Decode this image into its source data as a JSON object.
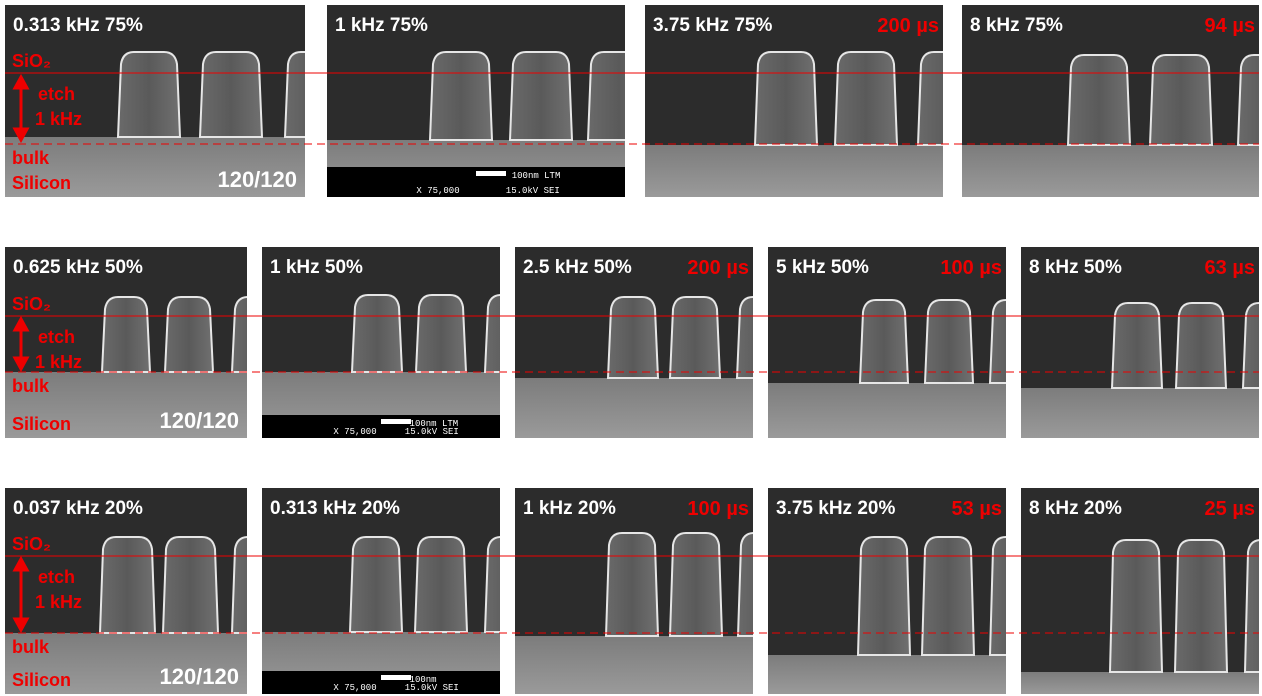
{
  "rows": [
    {
      "panels": [
        {
          "label": "0.313 kHz 75%",
          "annotations": {
            "oxide": "SiO₂",
            "etch": "etch",
            "etch_freq": "1 kHz",
            "bulk": "bulk",
            "silicon": "Silicon",
            "ratio": "120/120"
          }
        },
        {
          "label": "1 kHz 75%",
          "scale_bar": {
            "length": "100nm LTM",
            "magnification": "X 75,000",
            "voltage": "15.0kV SEI"
          }
        },
        {
          "label": "3.75 kHz 75%",
          "time": "200 µs"
        },
        {
          "label": "8 kHz 75%",
          "time": "94 µs"
        }
      ]
    },
    {
      "panels": [
        {
          "label": "0.625 kHz 50%",
          "annotations": {
            "oxide": "SiO₂",
            "etch": "etch",
            "etch_freq": "1 kHz",
            "bulk": "bulk",
            "silicon": "Silicon",
            "ratio": "120/120"
          }
        },
        {
          "label": "1 kHz 50%",
          "scale_bar": {
            "length": "100nm LTM",
            "magnification": "X 75,000",
            "voltage": "15.0kV SEI"
          }
        },
        {
          "label": "2.5 kHz 50%",
          "time": "200 µs"
        },
        {
          "label": "5 kHz 50%",
          "time": "100 µs"
        },
        {
          "label": "8 kHz 50%",
          "time": "63 µs"
        }
      ]
    },
    {
      "panels": [
        {
          "label": "0.037 kHz 20%",
          "annotations": {
            "oxide": "SiO₂",
            "etch": "etch",
            "etch_freq": "1 kHz",
            "bulk": "bulk",
            "silicon": "Silicon",
            "ratio": "120/120"
          }
        },
        {
          "label": "0.313 kHz 20%",
          "scale_bar": {
            "length": "100nm",
            "magnification": "X 75,000",
            "voltage": "15.0kV SEI"
          }
        },
        {
          "label": "1 kHz 20%",
          "time": "100 µs"
        },
        {
          "label": "3.75 kHz 20%",
          "time": "53 µs"
        },
        {
          "label": "8 kHz 20%",
          "time": "25 µs"
        }
      ]
    }
  ]
}
